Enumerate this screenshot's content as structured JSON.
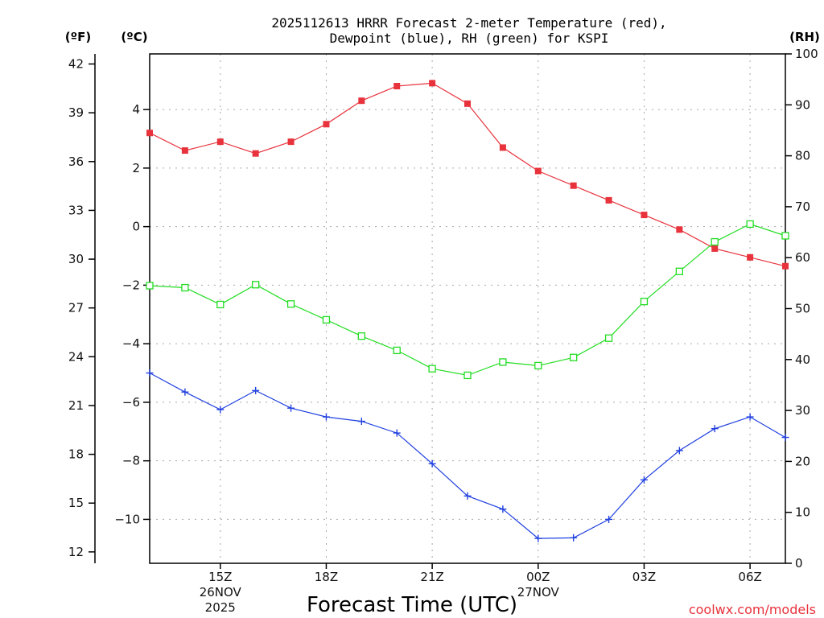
{
  "chart_data": {
    "type": "line",
    "title_line1": "2025112613 HRRR Forecast 2-meter Temperature (red),",
    "title_line2": "Dewpoint (blue), RH (green) for KSPI",
    "left_axis_f_label": "(ºF)",
    "left_axis_c_label": "(ºC)",
    "right_axis_label": "(RH)",
    "xlabel": "Forecast Time (UTC)",
    "credit": "coolwx.com/models",
    "x_hours": [
      13,
      14,
      15,
      16,
      17,
      18,
      19,
      20,
      21,
      22,
      23,
      24,
      25,
      26,
      27,
      28,
      29,
      30,
      31
    ],
    "xlim": [
      13,
      31
    ],
    "x_ticks": [
      {
        "x": 15,
        "lines": [
          "15Z",
          "26NOV",
          "2025"
        ]
      },
      {
        "x": 18,
        "lines": [
          "18Z"
        ]
      },
      {
        "x": 21,
        "lines": [
          "21Z"
        ]
      },
      {
        "x": 24,
        "lines": [
          "00Z",
          "27NOV"
        ]
      },
      {
        "x": 27,
        "lines": [
          "03Z"
        ]
      },
      {
        "x": 30,
        "lines": [
          "06Z"
        ]
      }
    ],
    "ylim_c": [
      -11.5,
      5.9
    ],
    "c_ticks": [
      4,
      2,
      0,
      -2,
      -4,
      -6,
      -8,
      -10
    ],
    "c_tick_labels": [
      "4",
      "2",
      "0",
      "−2",
      "−4",
      "−6",
      "−8",
      "−10"
    ],
    "f_ticks": [
      42,
      39,
      36,
      33,
      30,
      27,
      24,
      21,
      18,
      15,
      12
    ],
    "rh_ylim": [
      0,
      100
    ],
    "rh_ticks": [
      100,
      90,
      80,
      70,
      60,
      50,
      40,
      30,
      20,
      10,
      0
    ],
    "series": [
      {
        "name": "2-meter Temperature",
        "unit": "C",
        "axis": "left",
        "color": "#e8323c",
        "marker": "filled-square",
        "values": [
          3.2,
          2.6,
          2.9,
          2.5,
          2.9,
          3.5,
          4.3,
          4.8,
          4.9,
          4.2,
          2.7,
          1.9,
          1.4,
          0.9,
          0.4,
          -0.1,
          -0.75,
          -1.05,
          -1.35
        ]
      },
      {
        "name": "Dewpoint",
        "unit": "C",
        "axis": "left",
        "color": "#2040e0",
        "marker": "plus",
        "values": [
          -5.0,
          -5.65,
          -6.25,
          -5.6,
          -6.2,
          -6.5,
          -6.65,
          -7.05,
          -8.1,
          -9.2,
          -9.65,
          -10.65,
          -10.63,
          -10.0,
          -8.65,
          -7.65,
          -6.9,
          -6.5,
          -7.2
        ]
      },
      {
        "name": "Relative Humidity",
        "unit": "%",
        "axis": "right",
        "color": "#22dd22",
        "marker": "open-square",
        "values": [
          54.5,
          54.1,
          50.8,
          54.7,
          50.9,
          47.8,
          44.6,
          41.8,
          38.2,
          36.9,
          39.5,
          38.8,
          40.4,
          44.2,
          51.4,
          57.3,
          63.1,
          66.6,
          64.3
        ]
      }
    ]
  }
}
